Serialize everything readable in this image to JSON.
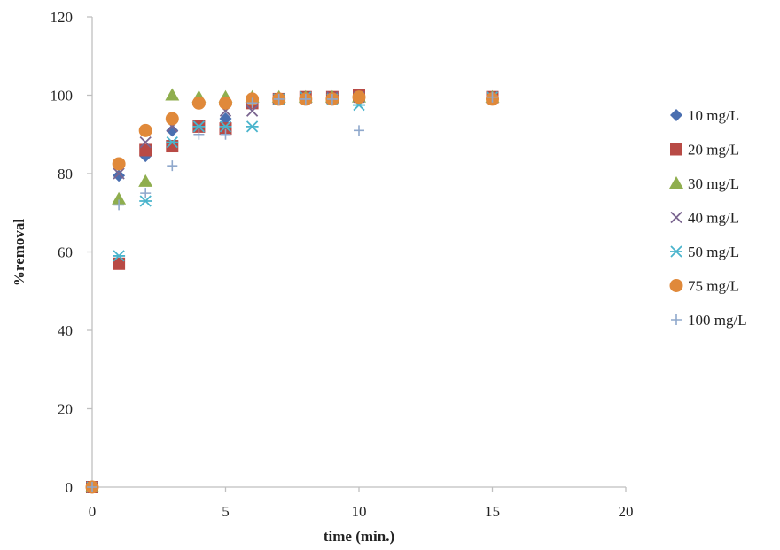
{
  "chart_data": {
    "type": "scatter",
    "title": "",
    "xlabel": "time (min.)",
    "ylabel": "%removal",
    "xlim": [
      0,
      20
    ],
    "ylim": [
      0,
      120
    ],
    "xticks": [
      0,
      5,
      10,
      15,
      20
    ],
    "yticks": [
      0,
      20,
      40,
      60,
      80,
      100,
      120
    ],
    "grid": false,
    "legend_position": "right",
    "series": [
      {
        "name": "10 mg/L",
        "marker": "diamond",
        "color": "#4a6fb0",
        "points": [
          [
            0,
            0
          ],
          [
            1,
            79.5
          ],
          [
            2,
            84.5
          ],
          [
            3,
            91
          ],
          [
            4,
            92
          ],
          [
            5,
            94
          ],
          [
            6,
            98
          ],
          [
            7,
            99
          ],
          [
            8,
            99.5
          ],
          [
            9,
            99.5
          ],
          [
            10,
            99.5
          ],
          [
            15,
            99.5
          ]
        ]
      },
      {
        "name": "20 mg/L",
        "marker": "square",
        "color": "#b84a45",
        "points": [
          [
            0,
            0
          ],
          [
            1,
            57
          ],
          [
            2,
            86
          ],
          [
            3,
            87
          ],
          [
            4,
            92
          ],
          [
            5,
            91.5
          ],
          [
            6,
            98
          ],
          [
            7,
            99
          ],
          [
            8,
            99.5
          ],
          [
            9,
            99.5
          ],
          [
            10,
            100
          ],
          [
            15,
            99.5
          ]
        ]
      },
      {
        "name": "30 mg/L",
        "marker": "triangle",
        "color": "#8fae4e",
        "points": [
          [
            0,
            0
          ],
          [
            1,
            73.5
          ],
          [
            2,
            78
          ],
          [
            3,
            100
          ],
          [
            4,
            99.5
          ],
          [
            5,
            99.5
          ],
          [
            6,
            99.5
          ],
          [
            7,
            99.5
          ],
          [
            8,
            99.5
          ],
          [
            9,
            99.5
          ],
          [
            10,
            99.5
          ],
          [
            15,
            99.5
          ]
        ]
      },
      {
        "name": "40 mg/L",
        "marker": "x",
        "color": "#7a6590",
        "points": [
          [
            0,
            0
          ],
          [
            1,
            80
          ],
          [
            2,
            88
          ],
          [
            3,
            92
          ],
          [
            4,
            92
          ],
          [
            5,
            96
          ],
          [
            6,
            96
          ],
          [
            7,
            99
          ],
          [
            8,
            99.5
          ],
          [
            9,
            99.5
          ],
          [
            10,
            99.5
          ],
          [
            15,
            99.5
          ]
        ]
      },
      {
        "name": "50 mg/L",
        "marker": "star",
        "color": "#4ab4cc",
        "points": [
          [
            0,
            0
          ],
          [
            1,
            59
          ],
          [
            2,
            73
          ],
          [
            3,
            88
          ],
          [
            4,
            92
          ],
          [
            5,
            92
          ],
          [
            6,
            92
          ],
          [
            7,
            99
          ],
          [
            8,
            99.5
          ],
          [
            9,
            99
          ],
          [
            10,
            97.5
          ],
          [
            15,
            99.5
          ]
        ]
      },
      {
        "name": "75  mg/L",
        "marker": "circle",
        "color": "#e0893a",
        "points": [
          [
            0,
            0
          ],
          [
            1,
            82.5
          ],
          [
            2,
            91
          ],
          [
            3,
            94
          ],
          [
            4,
            98
          ],
          [
            5,
            98
          ],
          [
            6,
            99
          ],
          [
            7,
            99
          ],
          [
            8,
            99
          ],
          [
            9,
            99
          ],
          [
            10,
            99.5
          ],
          [
            15,
            99
          ]
        ]
      },
      {
        "name": "100 mg/L",
        "marker": "plus",
        "color": "#8fa8cc",
        "points": [
          [
            0,
            0
          ],
          [
            1,
            72
          ],
          [
            2,
            75
          ],
          [
            3,
            82
          ],
          [
            4,
            90
          ],
          [
            5,
            90
          ],
          [
            6,
            98
          ],
          [
            7,
            99
          ],
          [
            8,
            99
          ],
          [
            9,
            99
          ],
          [
            10,
            91
          ],
          [
            15,
            99.5
          ]
        ]
      }
    ]
  }
}
